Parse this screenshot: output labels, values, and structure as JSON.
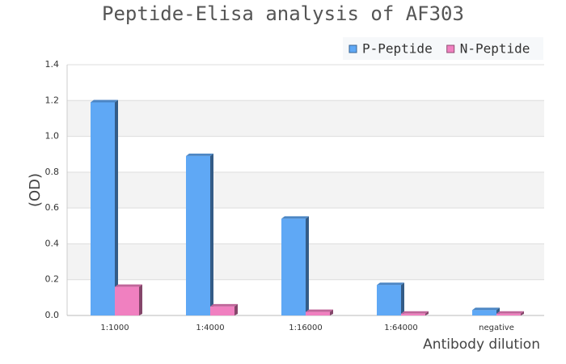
{
  "chart_data": {
    "type": "bar3d",
    "title": "Peptide-Elisa analysis of AF303",
    "x_label": "Antibody dilution",
    "y_label": "(OD)",
    "categories": [
      "1:1000",
      "1:4000",
      "1:16000",
      "1:64000",
      "negative"
    ],
    "series": [
      {
        "name": "P-Peptide",
        "color": "#5fa8f5",
        "values": [
          1.19,
          0.89,
          0.54,
          0.17,
          0.03
        ]
      },
      {
        "name": "N-Peptide",
        "color": "#f080c0",
        "values": [
          0.16,
          0.05,
          0.02,
          0.01,
          0.01
        ]
      }
    ],
    "ylim": [
      0,
      1.4
    ],
    "yticks": [
      {
        "value": 0,
        "label": "0.0"
      },
      0.2,
      0.4,
      0.6,
      0.8,
      {
        "value": 1,
        "label": "1.0"
      },
      1.2,
      1.4
    ],
    "grid": true,
    "legend": "top-right"
  }
}
